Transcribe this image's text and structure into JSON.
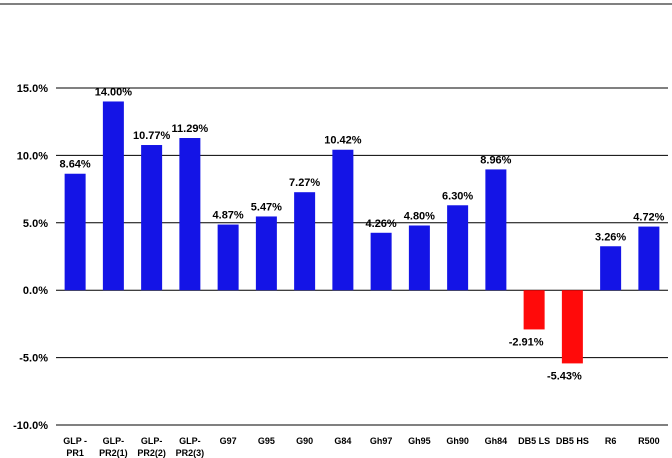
{
  "chart_data": {
    "type": "bar",
    "categories": [
      "GLP -\nPR1",
      "GLP-\nPR2(1)",
      "GLP-\nPR2(2)",
      "GLP-\nPR2(3)",
      "G97",
      "G95",
      "G90",
      "G84",
      "Gh97",
      "Gh95",
      "Gh90",
      "Gh84",
      "DB5 LS",
      "DB5 HS",
      "R6",
      "R500"
    ],
    "values": [
      8.64,
      14.0,
      10.77,
      11.29,
      4.87,
      5.47,
      7.27,
      10.42,
      4.26,
      4.8,
      6.3,
      8.96,
      -2.91,
      -5.43,
      3.26,
      4.72
    ],
    "value_labels": [
      "8.64%",
      "14.00%",
      "10.77%",
      "11.29%",
      "4.87%",
      "5.47%",
      "7.27%",
      "10.42%",
      "4.26%",
      "4.80%",
      "6.30%",
      "8.96%",
      "-2.91%",
      "-5.43%",
      "3.26%",
      "4.72%"
    ],
    "color": "#1414e6",
    "negative_color": "#ff0a0a",
    "ylim": [
      -10,
      15
    ],
    "yticks": [
      {
        "value": -10,
        "label": "-10.0%"
      },
      {
        "value": -5,
        "label": "-5.0%"
      },
      {
        "value": 0,
        "label": "0.0%"
      },
      {
        "value": 5,
        "label": "5.0%"
      },
      {
        "value": 10,
        "label": "10.0%"
      },
      {
        "value": 15,
        "label": "15.0%"
      }
    ],
    "grid": true
  }
}
